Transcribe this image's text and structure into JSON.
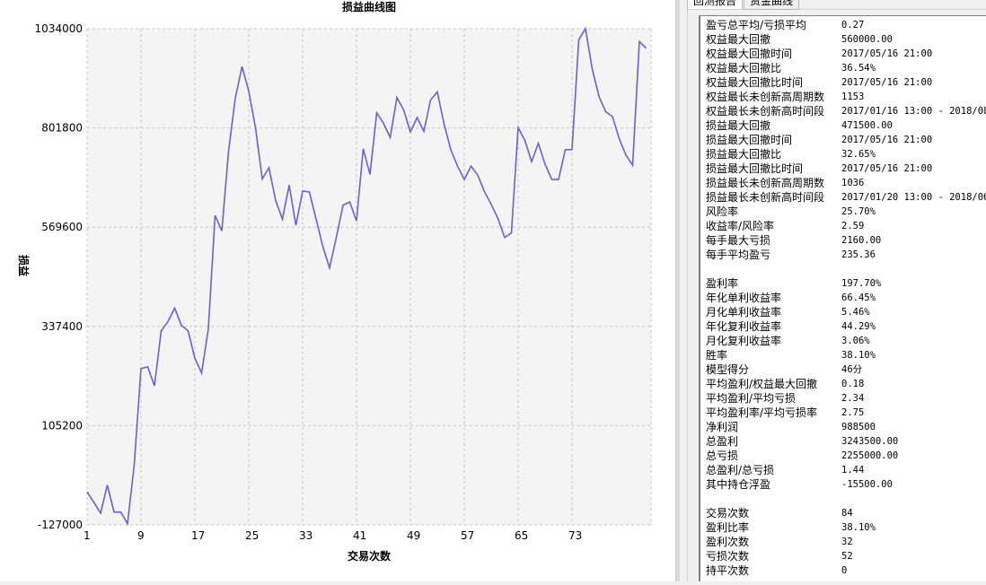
{
  "tabs": [
    {
      "label": "回测报告",
      "active": true
    },
    {
      "label": "资金曲线",
      "active": false
    }
  ],
  "report_rows": [
    {
      "label": "盈亏总平均/亏损平均",
      "value": "0.27"
    },
    {
      "label": "权益最大回撤",
      "value": "560000.00"
    },
    {
      "label": "权益最大回撤时间",
      "value": "2017/05/16 21:00"
    },
    {
      "label": "权益最大回撤比",
      "value": "36.54%"
    },
    {
      "label": "权益最大回撤比时间",
      "value": "2017/05/16 21:00"
    },
    {
      "label": "权益最长未创新高周期数",
      "value": "1153"
    },
    {
      "label": "权益最长未创新高时间段",
      "value": "2017/01/16 13:00 - 2018/08/"
    },
    {
      "label": "损益最大回撤",
      "value": "471500.00"
    },
    {
      "label": "损益最大回撤时间",
      "value": "2017/05/16 21:00"
    },
    {
      "label": "损益最大回撤比",
      "value": "32.65%"
    },
    {
      "label": "损益最大回撤比时间",
      "value": "2017/05/16 21:00"
    },
    {
      "label": "损益最长未创新高周期数",
      "value": "1036"
    },
    {
      "label": "损益最长未创新高时间段",
      "value": "2017/01/20 13:00 - 2018/06/"
    },
    {
      "label": "风险率",
      "value": "25.70%"
    },
    {
      "label": "收益率/风险率",
      "value": "2.59"
    },
    {
      "label": "每手最大亏损",
      "value": "2160.00"
    },
    {
      "label": "每手平均盈亏",
      "value": "235.36"
    },
    {
      "label": "",
      "value": ""
    },
    {
      "label": "盈利率",
      "value": "197.70%"
    },
    {
      "label": "年化单利收益率",
      "value": "66.45%"
    },
    {
      "label": "月化单利收益率",
      "value": "5.46%"
    },
    {
      "label": "年化复利收益率",
      "value": "44.29%"
    },
    {
      "label": "月化复利收益率",
      "value": "3.06%"
    },
    {
      "label": "胜率",
      "value": "38.10%"
    },
    {
      "label": "模型得分",
      "value": "46分"
    },
    {
      "label": "平均盈利/权益最大回撤",
      "value": "0.18"
    },
    {
      "label": "平均盈利/平均亏损",
      "value": "2.34"
    },
    {
      "label": "平均盈利率/平均亏损率",
      "value": "2.75"
    },
    {
      "label": "净利润",
      "value": "988500"
    },
    {
      "label": "总盈利",
      "value": "3243500.00"
    },
    {
      "label": "总亏损",
      "value": "2255000.00"
    },
    {
      "label": "总盈利/总亏损",
      "value": "1.44"
    },
    {
      "label": "其中持仓浮盈",
      "value": "-15500.00"
    },
    {
      "label": "",
      "value": ""
    },
    {
      "label": "交易次数",
      "value": "84"
    },
    {
      "label": "盈利比率",
      "value": "38.10%"
    },
    {
      "label": "盈利次数",
      "value": "32"
    },
    {
      "label": "亏损次数",
      "value": "52"
    },
    {
      "label": "持平次数",
      "value": "0"
    }
  ],
  "chart_data": {
    "type": "line",
    "title": "损益曲线图",
    "xlabel": "交易次数",
    "ylabel": "损益",
    "xlim": [
      1,
      84
    ],
    "ylim": [
      -127000,
      1034000
    ],
    "x_ticks": [
      "1",
      "9",
      "17",
      "25",
      "33",
      "41",
      "49",
      "57",
      "65",
      "73"
    ],
    "y_ticks": [
      "1034000",
      "801800",
      "569600",
      "337400",
      "105200",
      "-127000"
    ],
    "grid": true,
    "line_color": "#6a5fd6",
    "plot_bg": "#f4f4f4",
    "values": [
      -50000,
      -74000,
      -99500,
      -34000,
      -97000,
      -97000,
      -124000,
      14000,
      239000,
      243000,
      198500,
      327000,
      348500,
      380000,
      340000,
      327000,
      263000,
      228500,
      331500,
      597000,
      561000,
      747000,
      871000,
      945500,
      888000,
      802500,
      682500,
      708500,
      631500,
      588500,
      668000,
      574000,
      654500,
      652000,
      588500,
      524000,
      474500,
      545500,
      621000,
      628500,
      584000,
      753000,
      693000,
      837000,
      813000,
      779500,
      873000,
      844000,
      792500,
      826000,
      794000,
      867000,
      886500,
      811000,
      751000,
      712500,
      681000,
      712500,
      691500,
      652500,
      623000,
      590000,
      545500,
      556000,
      802500,
      772500,
      723000,
      766000,
      717000,
      681000,
      681000,
      751000,
      751000,
      1008000,
      1034000,
      939500,
      875500,
      839500,
      828500,
      777000,
      738500,
      714500,
      1004000,
      988500
    ]
  }
}
